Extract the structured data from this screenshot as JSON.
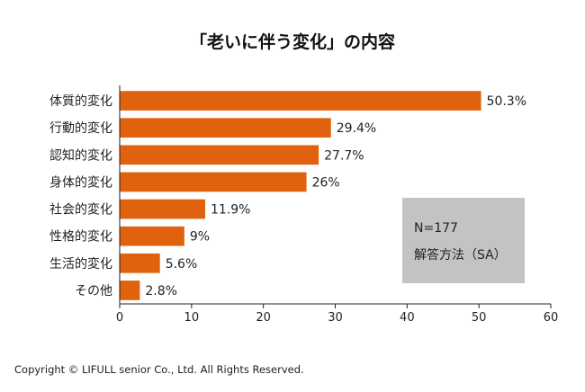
{
  "chart_data": {
    "type": "bar",
    "orientation": "horizontal",
    "title": "「老いに伴う変化」の内容",
    "categories": [
      "体質的変化",
      "行動的変化",
      "認知的変化",
      "身体的変化",
      "社会的変化",
      "性格的変化",
      "生活的変化",
      "その他"
    ],
    "values": [
      50.3,
      29.4,
      27.7,
      26,
      11.9,
      9,
      5.6,
      2.8
    ],
    "value_labels": [
      "50.3%",
      "29.4%",
      "27.7%",
      "26%",
      "11.9%",
      "9%",
      "5.6%",
      "2.8%"
    ],
    "xlim": [
      0,
      60
    ],
    "xticks": [
      "0",
      "10",
      "20",
      "30",
      "40",
      "50",
      "60"
    ],
    "bar_color": "#e0620f",
    "grid": false,
    "legend": "none"
  },
  "note": {
    "line1": "N=177",
    "line2": "解答方法（SA）",
    "bg_color": "#c3c3c3"
  },
  "footer": {
    "copyright": "Copyright © LIFULL senior Co., Ltd. All Rights Reserved."
  }
}
